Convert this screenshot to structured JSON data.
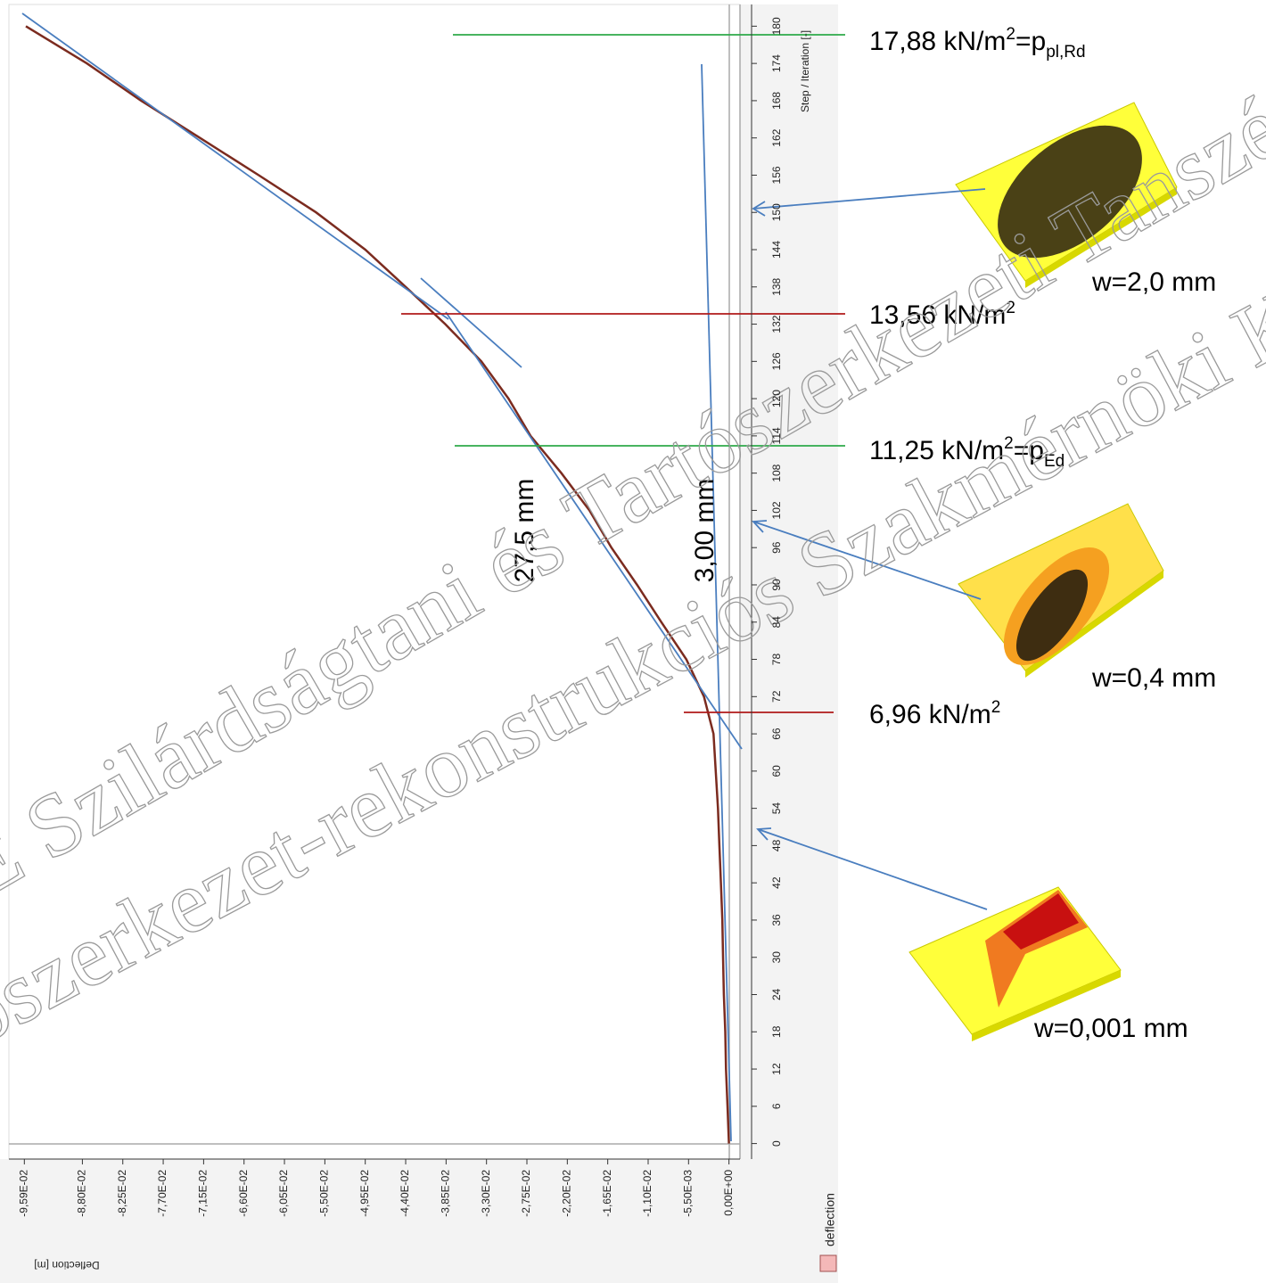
{
  "chart_data": {
    "type": "line",
    "xlabel": "Step / Iteration [-]",
    "ylabel": "Deflection [m]",
    "x": [
      0,
      6,
      12,
      18,
      24,
      30,
      36,
      42,
      48,
      54,
      60,
      66,
      72,
      78,
      84,
      90,
      96,
      102,
      108,
      114,
      120,
      126,
      132,
      138,
      144,
      150,
      156,
      162,
      168,
      174,
      180
    ],
    "series": [
      {
        "name": "deflection",
        "color": "#7b2b1f",
        "values": [
          0,
          -0.0002,
          -0.0004,
          -0.0005,
          -0.0007,
          -0.0008,
          -0.0009,
          -0.0011,
          -0.0013,
          -0.0015,
          -0.0018,
          -0.0021,
          -0.0034,
          -0.0058,
          -0.0092,
          -0.0125,
          -0.016,
          -0.019,
          -0.0228,
          -0.027,
          -0.03,
          -0.0337,
          -0.0386,
          -0.044,
          -0.0495,
          -0.0562,
          -0.064,
          -0.072,
          -0.08,
          -0.0874,
          -0.0957
        ]
      }
    ],
    "xlim": [
      -2.5,
      183.5
    ],
    "xticks": [
      0,
      6,
      12,
      18,
      24,
      30,
      36,
      42,
      48,
      54,
      60,
      66,
      72,
      78,
      84,
      90,
      96,
      102,
      108,
      114,
      120,
      126,
      132,
      138,
      144,
      150,
      156,
      162,
      168,
      174,
      180
    ],
    "ylim": [
      -0.098,
      0.0015
    ],
    "yticks": [
      {
        "value": -0.0959,
        "label": "-9,59E-02"
      },
      {
        "value": -0.088,
        "label": "-8,80E-02"
      },
      {
        "value": -0.0825,
        "label": "-8,25E-02"
      },
      {
        "value": -0.077,
        "label": "-7,70E-02"
      },
      {
        "value": -0.0715,
        "label": "-7,15E-02"
      },
      {
        "value": -0.066,
        "label": "-6,60E-02"
      },
      {
        "value": -0.0605,
        "label": "-6,05E-02"
      },
      {
        "value": -0.055,
        "label": "-5,50E-02"
      },
      {
        "value": -0.0495,
        "label": "-4,95E-02"
      },
      {
        "value": -0.044,
        "label": "-4,40E-02"
      },
      {
        "value": -0.0385,
        "label": "-3,85E-02"
      },
      {
        "value": -0.033,
        "label": "-3,30E-02"
      },
      {
        "value": -0.0275,
        "label": "-2,75E-02"
      },
      {
        "value": -0.022,
        "label": "-2,20E-02"
      },
      {
        "value": -0.0165,
        "label": "-1,65E-02"
      },
      {
        "value": -0.011,
        "label": "-1,10E-02"
      },
      {
        "value": -0.0055,
        "label": "-5,50E-03"
      },
      {
        "value": 0,
        "label": "0,00E+00"
      }
    ]
  },
  "annotations": {
    "levels": [
      {
        "text": "17,88 kN/m",
        "sup": "2",
        "rest": "=p",
        "sub": "pl,Rd"
      },
      {
        "text": "13,56 kN/m",
        "sup": "2"
      },
      {
        "text": "11,25 kN/m",
        "sup": "2",
        "rest": "=p",
        "sub": "Ed"
      },
      {
        "text": "6,96 kN/m",
        "sup": "2"
      }
    ],
    "deflections": [
      "w=2,0 mm",
      "w=0,4 mm",
      "w=0,001 mm"
    ],
    "dimensions": [
      "27,5 mm",
      "3,00 mm"
    ]
  },
  "watermark": [
    "E Szilárdságtani és Tartószerkezeti Tanszé",
    "ószerkezet-rekonstrukciós Szakmérnöki Ké"
  ]
}
